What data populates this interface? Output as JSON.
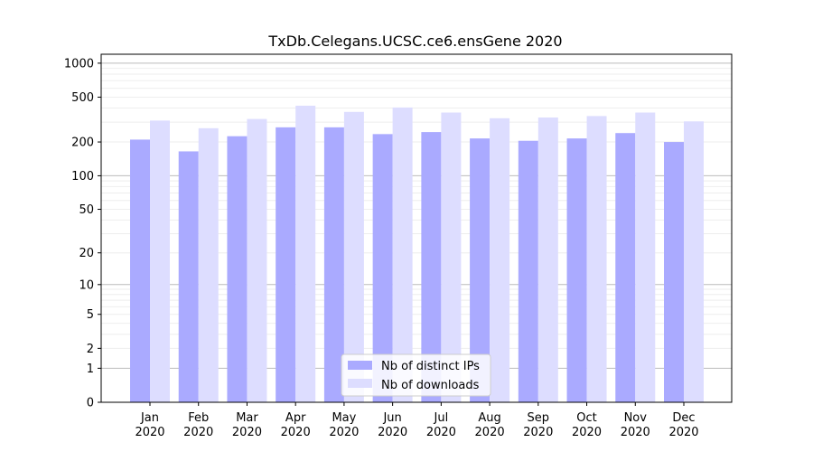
{
  "chart_data": {
    "type": "bar",
    "title": "TxDb.Celegans.UCSC.ce6.ensGene 2020",
    "xlabel": "",
    "ylabel": "",
    "y_scale": "log1p",
    "ylim": [
      0,
      1200
    ],
    "y_ticks": [
      0,
      1,
      2,
      5,
      10,
      20,
      50,
      100,
      200,
      500,
      1000
    ],
    "grid": true,
    "legend_position": "bottom-center",
    "categories": [
      {
        "month": "Jan",
        "year": "2020"
      },
      {
        "month": "Feb",
        "year": "2020"
      },
      {
        "month": "Mar",
        "year": "2020"
      },
      {
        "month": "Apr",
        "year": "2020"
      },
      {
        "month": "May",
        "year": "2020"
      },
      {
        "month": "Jun",
        "year": "2020"
      },
      {
        "month": "Jul",
        "year": "2020"
      },
      {
        "month": "Aug",
        "year": "2020"
      },
      {
        "month": "Sep",
        "year": "2020"
      },
      {
        "month": "Oct",
        "year": "2020"
      },
      {
        "month": "Nov",
        "year": "2020"
      },
      {
        "month": "Dec",
        "year": "2020"
      }
    ],
    "series": [
      {
        "name": "Nb of distinct IPs",
        "color": "#aaaaff",
        "values": [
          210,
          165,
          225,
          270,
          270,
          235,
          245,
          215,
          205,
          215,
          240,
          200
        ]
      },
      {
        "name": "Nb of downloads",
        "color": "#ddddff",
        "values": [
          310,
          265,
          320,
          420,
          370,
          405,
          365,
          325,
          330,
          340,
          365,
          305
        ]
      }
    ]
  }
}
